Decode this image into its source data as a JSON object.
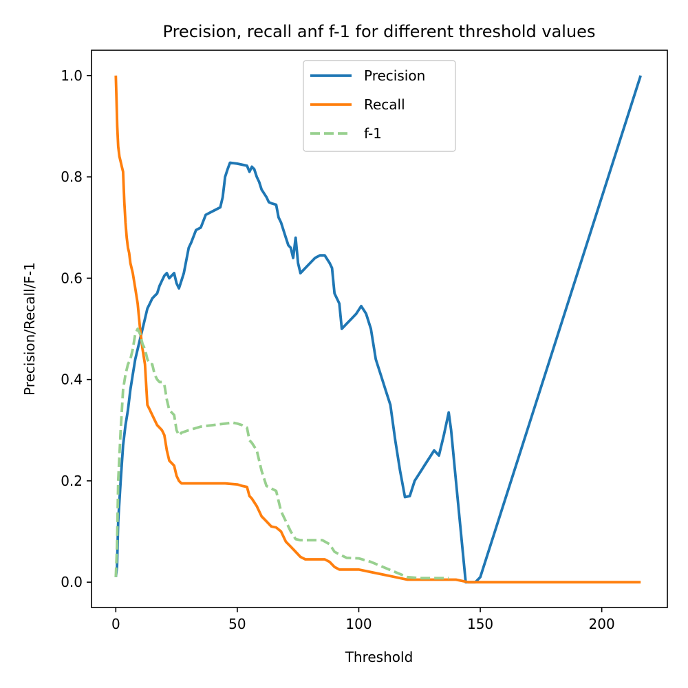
{
  "chart_data": {
    "type": "line",
    "title": "Precision, recall anf f-1 for different threshold values",
    "xlabel": "Threshold",
    "ylabel": "Precision/Recall/F-1",
    "xlim": [
      -10,
      227
    ],
    "ylim": [
      -0.05,
      1.05
    ],
    "xticks": [
      0,
      50,
      100,
      150,
      200
    ],
    "yticks": [
      0.0,
      0.2,
      0.4,
      0.6,
      0.8,
      1.0
    ],
    "xtick_labels": [
      "0",
      "50",
      "100",
      "150",
      "200"
    ],
    "ytick_labels": [
      "0.0",
      "0.2",
      "0.4",
      "0.6",
      "0.8",
      "1.0"
    ],
    "grid": false,
    "legend_position": "top-center",
    "series": [
      {
        "name": "Precision",
        "color": "#1f77b4",
        "style": "solid",
        "x": [
          0,
          0.5,
          1,
          2,
          3,
          4,
          5,
          6,
          7,
          8,
          9,
          10,
          11,
          12,
          13,
          14,
          15,
          16,
          17,
          18,
          19,
          20,
          21,
          22,
          23,
          24,
          25,
          26,
          27,
          28,
          30,
          31,
          33,
          35,
          37,
          39,
          41,
          43,
          44,
          45,
          46,
          47,
          50,
          52,
          54,
          55,
          56,
          57,
          58,
          59,
          60,
          62,
          63,
          64,
          66,
          67,
          68,
          70,
          71,
          72,
          73,
          74,
          75,
          76,
          78,
          80,
          82,
          84,
          86,
          88,
          89,
          90,
          91,
          92,
          93,
          95,
          97,
          99,
          101,
          103,
          105,
          107,
          109,
          111,
          113,
          115,
          117,
          119,
          121,
          123,
          125,
          127,
          129,
          131,
          133,
          135,
          137,
          138,
          140,
          142,
          144,
          146,
          148,
          150,
          216
        ],
        "values": [
          0.01,
          0.03,
          0.12,
          0.2,
          0.27,
          0.31,
          0.34,
          0.38,
          0.41,
          0.44,
          0.46,
          0.48,
          0.5,
          0.52,
          0.54,
          0.55,
          0.56,
          0.565,
          0.57,
          0.585,
          0.595,
          0.605,
          0.61,
          0.6,
          0.605,
          0.61,
          0.59,
          0.58,
          0.595,
          0.61,
          0.66,
          0.67,
          0.695,
          0.7,
          0.725,
          0.73,
          0.735,
          0.74,
          0.76,
          0.8,
          0.815,
          0.828,
          0.826,
          0.824,
          0.822,
          0.81,
          0.82,
          0.815,
          0.8,
          0.79,
          0.775,
          0.76,
          0.75,
          0.748,
          0.745,
          0.72,
          0.71,
          0.68,
          0.665,
          0.66,
          0.64,
          0.68,
          0.63,
          0.61,
          0.62,
          0.63,
          0.64,
          0.645,
          0.645,
          0.63,
          0.62,
          0.57,
          0.56,
          0.55,
          0.5,
          0.51,
          0.52,
          0.53,
          0.545,
          0.53,
          0.5,
          0.44,
          0.41,
          0.38,
          0.35,
          0.28,
          0.22,
          0.168,
          0.17,
          0.2,
          0.215,
          0.23,
          0.245,
          0.26,
          0.25,
          0.29,
          0.335,
          0.3,
          0.2,
          0.1,
          0.0,
          0.0,
          0.0,
          0.01,
          1.0
        ]
      },
      {
        "name": "Recall",
        "color": "#ff7f0e",
        "style": "solid",
        "x": [
          0,
          0.3,
          0.6,
          1,
          1.5,
          2,
          2.5,
          3,
          3.5,
          4,
          4.5,
          5,
          5.5,
          6,
          7,
          8,
          9,
          10,
          11,
          12,
          13,
          14,
          15,
          16,
          17,
          18,
          19,
          20,
          21,
          22,
          23,
          24,
          25,
          26,
          27,
          30,
          35,
          40,
          45,
          50,
          52,
          54,
          55,
          56,
          58,
          60,
          62,
          64,
          66,
          68,
          70,
          72,
          74,
          76,
          78,
          80,
          82,
          84,
          86,
          88,
          90,
          92,
          94,
          96,
          98,
          100,
          105,
          110,
          115,
          120,
          125,
          130,
          135,
          140,
          145,
          150,
          160,
          180,
          200,
          216
        ],
        "values": [
          1.0,
          0.95,
          0.9,
          0.86,
          0.84,
          0.83,
          0.82,
          0.81,
          0.75,
          0.71,
          0.68,
          0.66,
          0.65,
          0.63,
          0.61,
          0.58,
          0.55,
          0.5,
          0.46,
          0.43,
          0.35,
          0.34,
          0.33,
          0.32,
          0.31,
          0.305,
          0.3,
          0.29,
          0.26,
          0.24,
          0.235,
          0.23,
          0.21,
          0.2,
          0.195,
          0.195,
          0.195,
          0.195,
          0.195,
          0.193,
          0.19,
          0.188,
          0.17,
          0.165,
          0.15,
          0.13,
          0.12,
          0.11,
          0.108,
          0.1,
          0.08,
          0.07,
          0.06,
          0.05,
          0.045,
          0.045,
          0.045,
          0.045,
          0.045,
          0.04,
          0.03,
          0.025,
          0.025,
          0.025,
          0.025,
          0.025,
          0.02,
          0.015,
          0.01,
          0.005,
          0.005,
          0.005,
          0.005,
          0.005,
          0.0,
          0.0,
          0.0,
          0.0,
          0.0,
          0.0
        ]
      },
      {
        "name": "f-1",
        "color": "#98d08f",
        "style": "dashed",
        "x": [
          0,
          0.5,
          1,
          2,
          3,
          4,
          5,
          6,
          7,
          8,
          9,
          10,
          11,
          12,
          13,
          14,
          15,
          16,
          17,
          18,
          19,
          20,
          21,
          22,
          23,
          24,
          25,
          26,
          27,
          30,
          35,
          40,
          45,
          48,
          50,
          52,
          54,
          55,
          56,
          58,
          60,
          62,
          64,
          66,
          68,
          70,
          72,
          74,
          76,
          78,
          80,
          85,
          88,
          90,
          92,
          95,
          100,
          105,
          110,
          115,
          120,
          125,
          130,
          135,
          137
        ],
        "values": [
          0.01,
          0.07,
          0.2,
          0.3,
          0.38,
          0.41,
          0.43,
          0.44,
          0.46,
          0.49,
          0.5,
          0.49,
          0.47,
          0.46,
          0.44,
          0.43,
          0.43,
          0.41,
          0.4,
          0.395,
          0.395,
          0.39,
          0.36,
          0.34,
          0.335,
          0.33,
          0.3,
          0.29,
          0.295,
          0.3,
          0.307,
          0.31,
          0.313,
          0.315,
          0.313,
          0.31,
          0.305,
          0.28,
          0.275,
          0.26,
          0.22,
          0.19,
          0.185,
          0.18,
          0.14,
          0.12,
          0.1,
          0.085,
          0.083,
          0.083,
          0.083,
          0.083,
          0.075,
          0.06,
          0.055,
          0.048,
          0.047,
          0.04,
          0.03,
          0.02,
          0.01,
          0.008,
          0.008,
          0.008,
          0.008
        ]
      }
    ]
  }
}
